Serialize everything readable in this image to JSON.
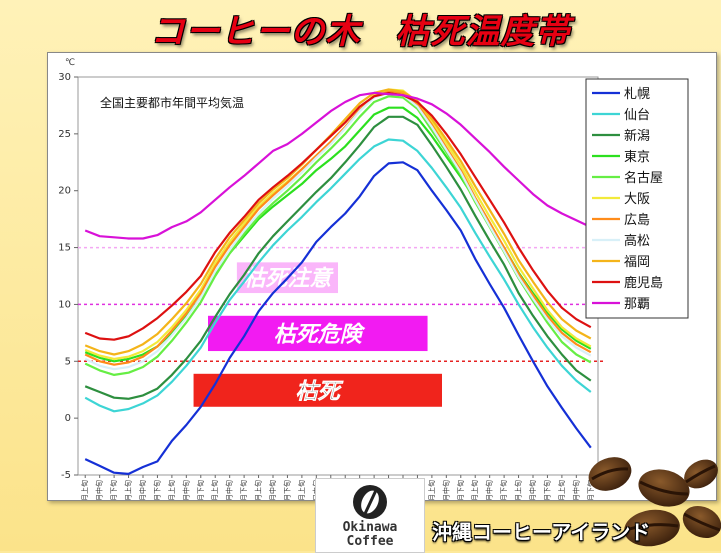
{
  "title": "コーヒーの木　枯死温度帯",
  "footer_text": "沖縄コーヒーアイランド",
  "logo": {
    "line1": "Okinawa",
    "line2": "Coffee"
  },
  "chart_data": {
    "type": "line",
    "title": "全国主要都市年間平均気温",
    "y_unit": "℃",
    "ylim": [
      -5,
      30
    ],
    "yticks": [
      -5,
      0,
      5,
      10,
      15,
      20,
      25,
      30
    ],
    "categories": [
      "1月上旬",
      "1月中旬",
      "1月下旬",
      "2月上旬",
      "2月中旬",
      "2月下旬",
      "3月上旬",
      "3月中旬",
      "3月下旬",
      "4月上旬",
      "4月中旬",
      "4月下旬",
      "5月上旬",
      "5月中旬",
      "5月下旬",
      "6月上旬",
      "6月中旬",
      "6月下旬",
      "7月上旬",
      "7月中旬",
      "7月下旬",
      "8月上旬",
      "8月中旬",
      "8月下旬",
      "9月上旬",
      "9月中旬",
      "9月下旬",
      "10月上旬",
      "10月中旬",
      "10月下旬",
      "11月上旬",
      "11月中旬",
      "11月下旬",
      "12月上旬",
      "12月中旬",
      "12月下旬"
    ],
    "series": [
      {
        "name": "札幌",
        "color": "#1530d6",
        "values": [
          -3.6,
          -4.2,
          -4.8,
          -4.9,
          -4.3,
          -3.8,
          -2.0,
          -0.6,
          1.0,
          3.0,
          5.3,
          7.2,
          9.4,
          11.0,
          12.3,
          13.7,
          15.5,
          16.8,
          18.0,
          19.5,
          21.3,
          22.4,
          22.5,
          21.8,
          20.0,
          18.3,
          16.5,
          14.0,
          11.8,
          9.7,
          7.3,
          5.0,
          2.8,
          0.9,
          -0.9,
          -2.6
        ]
      },
      {
        "name": "仙台",
        "color": "#3dd5d5",
        "values": [
          1.8,
          1.1,
          0.6,
          0.8,
          1.3,
          2.0,
          3.2,
          4.6,
          6.2,
          8.4,
          10.4,
          12.0,
          13.7,
          15.2,
          16.5,
          17.7,
          19.0,
          20.2,
          21.5,
          22.8,
          23.9,
          24.5,
          24.4,
          23.5,
          22.0,
          20.3,
          18.5,
          16.3,
          14.2,
          12.2,
          10.0,
          8.0,
          6.2,
          4.6,
          3.3,
          2.3
        ]
      },
      {
        "name": "新潟",
        "color": "#2d8f3f",
        "values": [
          2.8,
          2.3,
          1.8,
          1.7,
          2.0,
          2.6,
          3.8,
          5.2,
          6.8,
          8.9,
          10.9,
          12.6,
          14.5,
          16.0,
          17.3,
          18.6,
          19.9,
          21.1,
          22.5,
          24.0,
          25.6,
          26.5,
          26.5,
          25.8,
          24.0,
          22.1,
          20.1,
          17.8,
          15.6,
          13.5,
          11.0,
          9.0,
          7.2,
          5.6,
          4.2,
          3.3
        ]
      },
      {
        "name": "東京",
        "color": "#2ce01f",
        "values": [
          5.8,
          5.3,
          5.0,
          5.2,
          5.6,
          6.3,
          7.5,
          8.9,
          10.6,
          12.7,
          14.5,
          16.0,
          17.5,
          18.6,
          19.6,
          20.6,
          21.8,
          22.8,
          23.9,
          25.3,
          26.7,
          27.3,
          27.3,
          26.4,
          24.8,
          23.0,
          21.2,
          19.2,
          17.0,
          15.0,
          12.8,
          11.0,
          9.3,
          7.8,
          6.8,
          6.1
        ]
      },
      {
        "name": "名古屋",
        "color": "#66ee44",
        "values": [
          4.8,
          4.2,
          3.8,
          4.0,
          4.5,
          5.4,
          6.8,
          8.4,
          10.2,
          12.5,
          14.5,
          16.2,
          17.7,
          18.9,
          20.0,
          21.2,
          22.5,
          23.7,
          25.0,
          26.5,
          27.8,
          28.3,
          28.2,
          27.2,
          25.3,
          23.4,
          21.4,
          19.0,
          16.8,
          14.6,
          12.3,
          10.3,
          8.4,
          6.7,
          5.6,
          4.9
        ]
      },
      {
        "name": "大阪",
        "color": "#f2ea3a",
        "values": [
          6.0,
          5.5,
          5.2,
          5.4,
          5.9,
          6.7,
          8.0,
          9.5,
          11.3,
          13.6,
          15.5,
          17.1,
          18.6,
          19.8,
          20.8,
          21.9,
          23.1,
          24.3,
          25.6,
          27.1,
          28.4,
          28.9,
          28.8,
          27.8,
          26.1,
          24.2,
          22.2,
          19.9,
          17.7,
          15.6,
          13.3,
          11.4,
          9.5,
          8.0,
          7.0,
          6.3
        ]
      },
      {
        "name": "広島",
        "color": "#ff8c1a",
        "values": [
          5.6,
          5.0,
          4.7,
          4.9,
          5.4,
          6.3,
          7.7,
          9.2,
          11.0,
          13.3,
          15.2,
          16.8,
          18.4,
          19.6,
          20.7,
          21.9,
          23.1,
          24.3,
          25.6,
          27.1,
          28.3,
          28.7,
          28.6,
          27.6,
          25.8,
          23.8,
          21.8,
          19.4,
          17.2,
          15.0,
          12.7,
          10.8,
          9.0,
          7.5,
          6.5,
          5.8
        ]
      },
      {
        "name": "高松",
        "color": "#d8f0f8",
        "values": [
          5.2,
          4.6,
          4.3,
          4.5,
          5.0,
          5.9,
          7.3,
          8.8,
          10.6,
          12.9,
          14.8,
          16.5,
          18.0,
          19.3,
          20.4,
          21.6,
          22.9,
          24.1,
          25.5,
          27.0,
          28.2,
          28.6,
          28.4,
          27.4,
          25.6,
          23.6,
          21.6,
          19.2,
          16.9,
          14.7,
          12.4,
          10.5,
          8.7,
          7.2,
          6.2,
          5.5
        ]
      },
      {
        "name": "福岡",
        "color": "#f4b41a",
        "values": [
          6.4,
          5.9,
          5.6,
          5.9,
          6.5,
          7.4,
          8.7,
          10.1,
          11.8,
          14.0,
          15.9,
          17.4,
          18.9,
          20.1,
          21.1,
          22.3,
          23.6,
          24.9,
          26.3,
          27.7,
          28.6,
          28.9,
          28.7,
          27.9,
          26.3,
          24.5,
          22.6,
          20.4,
          18.3,
          16.2,
          13.9,
          12.0,
          10.2,
          8.7,
          7.7,
          7.0
        ]
      },
      {
        "name": "鹿児島",
        "color": "#dd1111",
        "values": [
          7.5,
          7.0,
          6.9,
          7.2,
          7.9,
          8.8,
          9.9,
          11.1,
          12.5,
          14.6,
          16.3,
          17.7,
          19.2,
          20.3,
          21.3,
          22.4,
          23.6,
          24.8,
          26.0,
          27.4,
          28.3,
          28.6,
          28.4,
          27.8,
          26.6,
          25.0,
          23.2,
          21.2,
          19.2,
          17.2,
          15.0,
          13.0,
          11.2,
          9.7,
          8.7,
          8.0
        ]
      },
      {
        "name": "那覇",
        "color": "#d811d8",
        "values": [
          16.5,
          16.0,
          15.9,
          15.8,
          15.8,
          16.1,
          16.8,
          17.3,
          18.1,
          19.2,
          20.3,
          21.3,
          22.4,
          23.5,
          24.1,
          25.0,
          26.0,
          27.0,
          27.8,
          28.4,
          28.6,
          28.5,
          28.4,
          28.1,
          27.6,
          26.8,
          25.8,
          24.6,
          23.4,
          22.1,
          20.9,
          19.7,
          18.7,
          18.0,
          17.4,
          16.8
        ]
      }
    ],
    "thresholds": [
      {
        "value": 15,
        "color": "#f4a8f4"
      },
      {
        "value": 10,
        "color": "#e030e0"
      },
      {
        "value": 5,
        "color": "#e52222"
      }
    ],
    "zones": [
      {
        "label": "枯死注意",
        "bg": "#fab6fa",
        "text_color": "#ffffff",
        "y_top": 13.7,
        "y_bottom": 11.0,
        "x_from": 10.5,
        "x_to": 17.5
      },
      {
        "label": "枯死危険",
        "bg": "#f21bf2",
        "text_color": "#ffffff",
        "y_top": 9.0,
        "y_bottom": 5.9,
        "x_from": 8.5,
        "x_to": 23.7
      },
      {
        "label": "枯死",
        "bg": "#f0241c",
        "text_color": "#111111",
        "y_top": 3.9,
        "y_bottom": 1.0,
        "x_from": 7.5,
        "x_to": 24.7
      }
    ],
    "grid": false,
    "legend": "right"
  }
}
